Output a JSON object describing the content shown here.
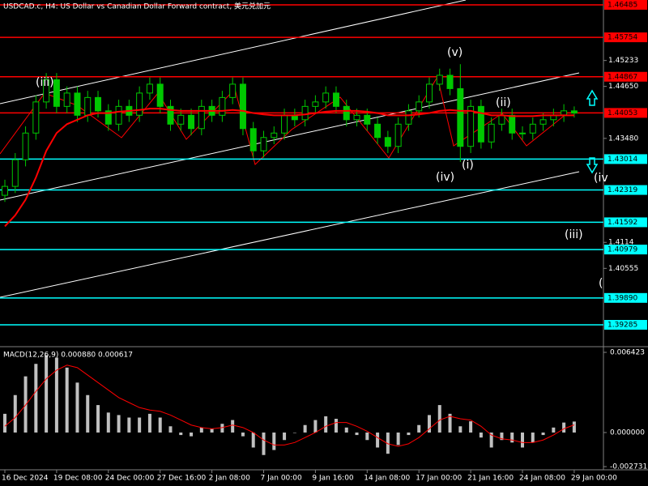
{
  "chart_data": [
    {
      "type": "candlestick",
      "title": "USDCAD.c, H4: US Dollar vs Canadian Dollar Forward contract, 美元兑加元",
      "categories": [
        "16 Dec 2024",
        null,
        null,
        null,
        null,
        "19 Dec 08:00",
        null,
        null,
        null,
        null,
        "24 Dec 00:00",
        null,
        null,
        null,
        null,
        "27 Dec 16:00",
        null,
        null,
        null,
        null,
        "2 Jan 08:00",
        null,
        null,
        null,
        null,
        "7 Jan 00:00",
        null,
        null,
        null,
        null,
        "9 Jan 16:00",
        null,
        null,
        null,
        null,
        "14 Jan 08:00",
        null,
        null,
        null,
        null,
        "17 Jan 00:00",
        null,
        null,
        null,
        null,
        "21 Jan 16:00",
        null,
        null,
        null,
        null,
        "24 Jan 08:00",
        null,
        null,
        null,
        null,
        "29 Jan 00:00"
      ],
      "open": [
        1.422,
        1.424,
        1.43,
        1.436,
        1.443,
        1.448,
        1.442,
        1.445,
        1.44,
        1.444,
        1.441,
        1.438,
        1.442,
        1.44,
        1.445,
        1.447,
        1.442,
        1.438,
        1.44,
        1.437,
        1.442,
        1.44,
        1.444,
        1.447,
        1.437,
        1.432,
        1.435,
        1.436,
        1.44,
        1.439,
        1.442,
        1.443,
        1.445,
        1.442,
        1.439,
        1.44,
        1.438,
        1.435,
        1.433,
        1.438,
        1.441,
        1.443,
        1.447,
        1.449,
        1.446,
        1.433,
        1.442,
        1.434,
        1.438,
        1.44,
        1.436,
        1.436,
        1.438,
        1.439,
        1.44,
        1.441
      ],
      "high": [
        1.4255,
        1.4315,
        1.4375,
        1.4445,
        1.4495,
        1.4495,
        1.4465,
        1.4465,
        1.4455,
        1.4455,
        1.4425,
        1.4435,
        1.4435,
        1.4465,
        1.4485,
        1.4485,
        1.4435,
        1.4415,
        1.4415,
        1.4435,
        1.4435,
        1.4455,
        1.4485,
        1.4485,
        1.4385,
        1.4365,
        1.4375,
        1.4415,
        1.4415,
        1.4435,
        1.4445,
        1.4465,
        1.4465,
        1.4435,
        1.4415,
        1.4415,
        1.4395,
        1.4365,
        1.4395,
        1.4425,
        1.4445,
        1.4485,
        1.4505,
        1.4505,
        1.4515,
        1.4435,
        1.4435,
        1.4395,
        1.4415,
        1.4415,
        1.4375,
        1.4395,
        1.4405,
        1.4415,
        1.4425,
        1.442
      ],
      "low": [
        1.4205,
        1.4225,
        1.4285,
        1.4345,
        1.4415,
        1.4405,
        1.4405,
        1.4385,
        1.4385,
        1.4395,
        1.4365,
        1.4365,
        1.4385,
        1.4385,
        1.4435,
        1.4405,
        1.4365,
        1.4365,
        1.4355,
        1.4355,
        1.4385,
        1.4385,
        1.4425,
        1.4355,
        1.4305,
        1.4305,
        1.4335,
        1.4345,
        1.4375,
        1.4375,
        1.4405,
        1.4415,
        1.4405,
        1.4375,
        1.4375,
        1.4365,
        1.4335,
        1.4315,
        1.4315,
        1.4365,
        1.4395,
        1.4415,
        1.4455,
        1.4445,
        1.4295,
        1.4315,
        1.4325,
        1.4325,
        1.4365,
        1.4345,
        1.4345,
        1.4345,
        1.4365,
        1.4375,
        1.4385,
        1.4395
      ],
      "close": [
        1.424,
        1.43,
        1.436,
        1.443,
        1.448,
        1.442,
        1.445,
        1.44,
        1.444,
        1.441,
        1.438,
        1.442,
        1.44,
        1.445,
        1.447,
        1.442,
        1.438,
        1.44,
        1.437,
        1.442,
        1.44,
        1.444,
        1.447,
        1.437,
        1.432,
        1.435,
        1.436,
        1.44,
        1.439,
        1.442,
        1.443,
        1.445,
        1.442,
        1.439,
        1.44,
        1.438,
        1.435,
        1.433,
        1.438,
        1.441,
        1.443,
        1.447,
        1.449,
        1.446,
        1.433,
        1.442,
        1.434,
        1.438,
        1.44,
        1.436,
        1.436,
        1.438,
        1.439,
        1.44,
        1.441,
        1.4405
      ],
      "up_color": "#00c800",
      "down_color": "#00c800",
      "ma": {
        "color": "#ff0000",
        "values": [
          1.415,
          1.4175,
          1.421,
          1.426,
          1.432,
          1.436,
          1.438,
          1.439,
          1.44,
          1.4405,
          1.4405,
          1.4408,
          1.441,
          1.4412,
          1.4415,
          1.4415,
          1.4412,
          1.441,
          1.441,
          1.441,
          1.441,
          1.441,
          1.4412,
          1.441,
          1.4405,
          1.4402,
          1.44,
          1.44,
          1.44,
          1.4402,
          1.4405,
          1.4408,
          1.441,
          1.441,
          1.441,
          1.4408,
          1.4405,
          1.44,
          1.44,
          1.44,
          1.4402,
          1.4405,
          1.441,
          1.4412,
          1.441,
          1.441,
          1.4405,
          1.44,
          1.44,
          1.4398,
          1.4398,
          1.4398,
          1.44,
          1.44,
          1.44,
          1.44
        ]
      },
      "levels": [
        {
          "value": 1.46485,
          "color": "#ff0000"
        },
        {
          "value": 1.45754,
          "color": "#ff0000"
        },
        {
          "value": 1.44867,
          "color": "#ff0000"
        },
        {
          "value": 1.44053,
          "color": "#ff0000"
        },
        {
          "value": 1.43014,
          "color": "#00ffff"
        },
        {
          "value": 1.42319,
          "color": "#00ffff"
        },
        {
          "value": 1.41592,
          "color": "#00ffff"
        },
        {
          "value": {
            "value": 1.40979,
            "label": "1.40979"
          },
          "color": "#00ffff"
        },
        {
          "value": {
            "value": 1.3989,
            "label": "1.39890"
          },
          "color": "#00ffff"
        },
        {
          "value": 1.39285,
          "color": "#00ffff"
        }
      ],
      "ylim": [
        1.38793,
        1.46594
      ],
      "yticks": [
        1.45233,
        {
          "value": 1.4465,
          "label": "1.44650"
        },
        {
          "value": 1.4348,
          "label": "1.43480"
        },
        1.4114,
        1.40555
      ],
      "annotations": [
        "(iii)",
        "(v)",
        "(ii)",
        "(iv)",
        "(i)",
        "(iv",
        "(iii)",
        "("
      ]
    },
    {
      "type": "macd",
      "title": "MACD(12,26,9) 0.000880 0.000617",
      "series": [
        {
          "name": "MACD",
          "color": "#c0c0c0",
          "values": [
            0.0015,
            0.003,
            0.0045,
            0.0055,
            0.0062,
            0.006,
            0.0052,
            0.004,
            0.003,
            0.0022,
            0.0016,
            0.0014,
            0.0012,
            0.0012,
            0.0015,
            0.0012,
            0.0005,
            -0.0002,
            -0.0003,
            0.0004,
            0.0003,
            0.0007,
            0.001,
            -0.0003,
            -0.0012,
            -0.0018,
            -0.0014,
            -0.0006,
            0.0,
            0.0006,
            0.001,
            0.0013,
            0.0011,
            0.0004,
            -0.0002,
            -0.0006,
            -0.0012,
            -0.0017,
            -0.001,
            -0.0002,
            0.0006,
            0.0014,
            0.0022,
            0.0015,
            0.0005,
            0.0009,
            -0.0004,
            -0.0012,
            -0.0006,
            -0.0008,
            -0.0012,
            -0.0008,
            -0.0002,
            0.0004,
            0.0008,
            0.00088
          ]
        },
        {
          "name": "Signal",
          "color": "#ff0000",
          "values": [
            0.0005,
            0.0012,
            0.0022,
            0.0033,
            0.0043,
            0.005,
            0.0054,
            0.0052,
            0.0046,
            0.004,
            0.0034,
            0.0028,
            0.0024,
            0.002,
            0.0018,
            0.0017,
            0.0014,
            0.001,
            0.0006,
            0.0004,
            0.0003,
            0.0004,
            0.0006,
            0.0004,
            0.0,
            -0.0006,
            -0.001,
            -0.001,
            -0.0008,
            -0.0004,
            0.0,
            0.0005,
            0.0008,
            0.0008,
            0.0005,
            0.0001,
            -0.0004,
            -0.0009,
            -0.0011,
            -0.0009,
            -0.0004,
            0.0003,
            0.001,
            0.0013,
            0.0011,
            0.001,
            0.0005,
            -0.0002,
            -0.0005,
            -0.0006,
            -0.0008,
            -0.0008,
            -0.0006,
            -0.0002,
            0.0003,
            0.000617
          ]
        }
      ],
      "ylim": [
        -0.002985,
        0.006747
      ],
      "yticks": [
        0.006423,
        {
          "value": 0,
          "label": "0.000000"
        },
        -0.002731
      ]
    }
  ]
}
